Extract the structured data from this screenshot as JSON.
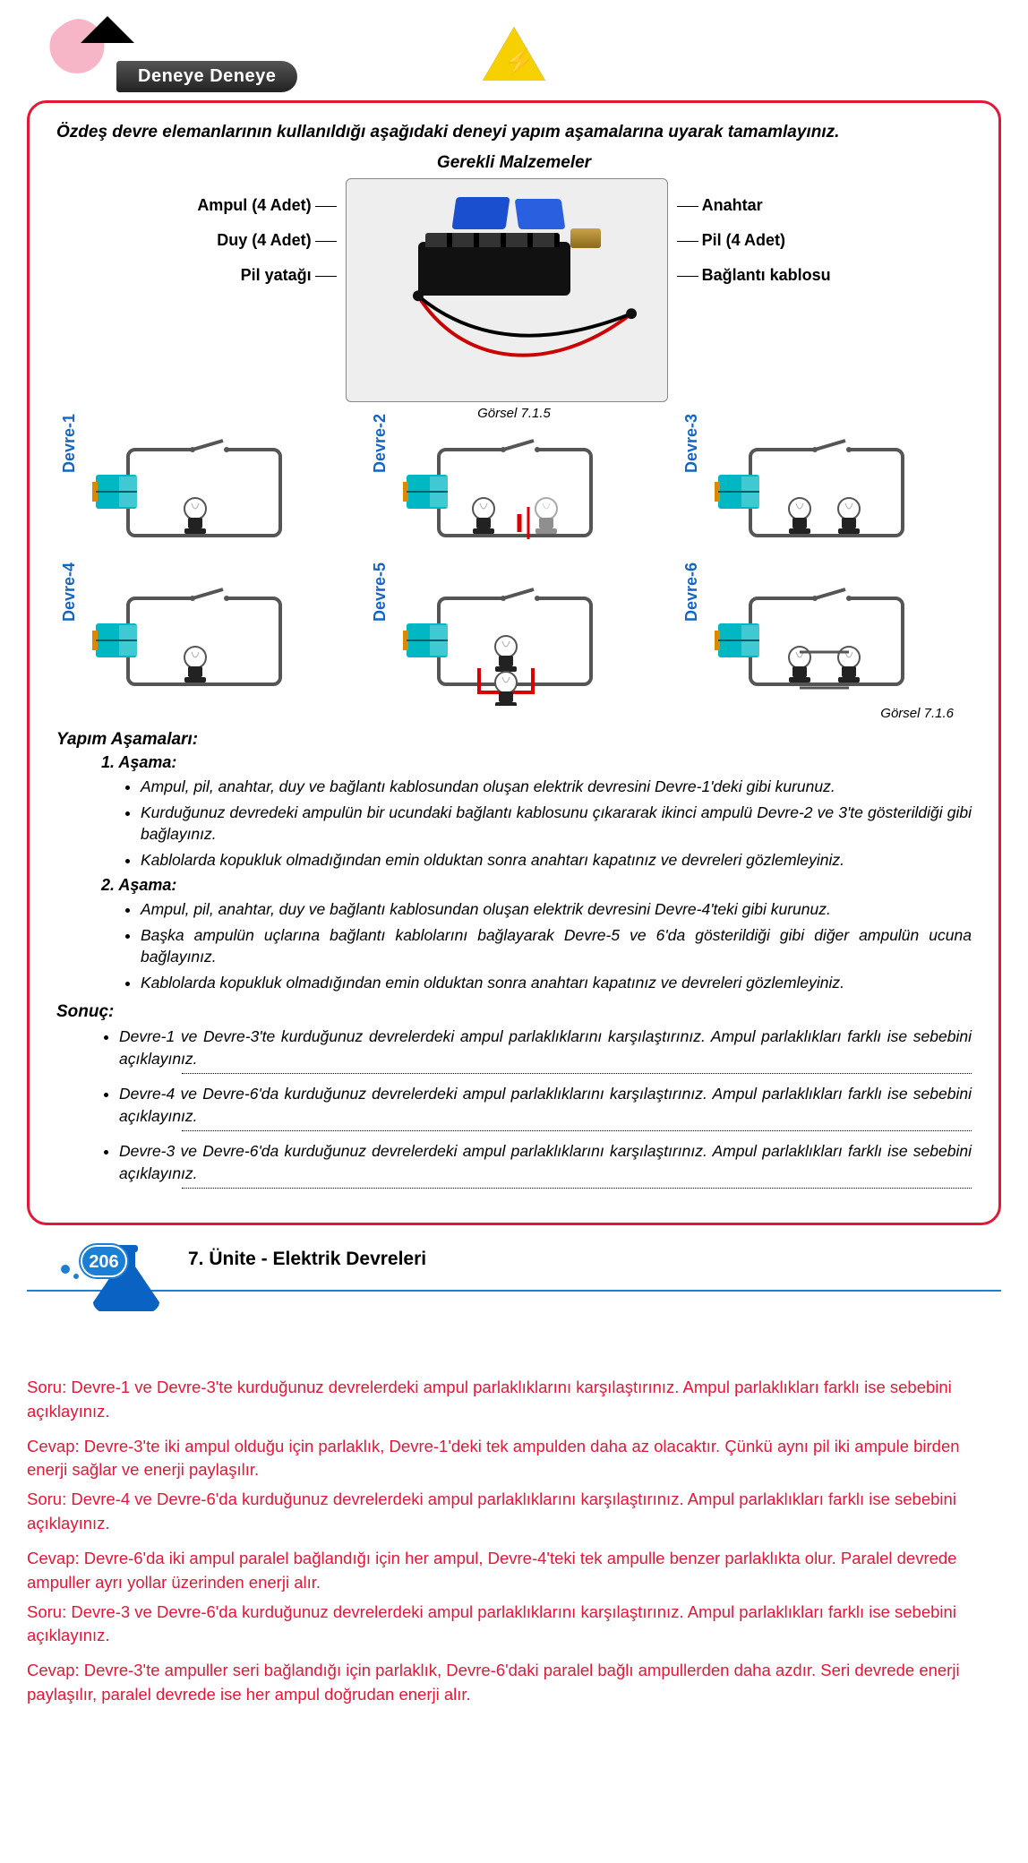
{
  "header": {
    "banner": "Deneye Deneye",
    "intro": "Özdeş devre elemanlarının kullanıldığı aşağıdaki deneyi yapım aşamalarına uyarak tamamlayınız."
  },
  "materials": {
    "title": "Gerekli Malzemeler",
    "left": [
      "Ampul (4 Adet)",
      "Duy (4 Adet)",
      "Pil yatağı"
    ],
    "right": [
      "Anahtar",
      "Pil (4 Adet)",
      "Bağlantı kablosu"
    ],
    "caption": "Görsel 7.1.5"
  },
  "circuits": {
    "labels": [
      "Devre-1",
      "Devre-2",
      "Devre-3",
      "Devre-4",
      "Devre-5",
      "Devre-6"
    ],
    "caption": "Görsel 7.1.6",
    "color_label": "#1565c0",
    "battery_body": "#00b7c4",
    "battery_tip": "#d98a00"
  },
  "steps": {
    "heading": "Yapım Aşamaları:",
    "stage1_h": "1. Aşama:",
    "stage1": [
      "Ampul, pil, anahtar, duy ve bağlantı kablosundan oluşan elektrik devresini Devre-1'deki gibi kurunuz.",
      "Kurduğunuz devredeki ampulün bir ucundaki bağlantı kablosunu çıkararak ikinci ampulü Devre-2 ve 3'te gösterildiği gibi bağlayınız.",
      "Kablolarda kopukluk olmadığından emin olduktan sonra anahtarı kapatınız ve devreleri gözlemleyiniz."
    ],
    "stage2_h": "2. Aşama:",
    "stage2": [
      "Ampul, pil, anahtar, duy ve bağlantı kablosundan oluşan elektrik devresini Devre-4'teki gibi kurunuz.",
      "Başka ampulün uçlarına bağlantı kablolarını bağlayarak Devre-5 ve 6'da gösterildiği gibi diğer ampulün ucuna bağlayınız.",
      "Kablolarda kopukluk olmadığından emin olduktan sonra anahtarı kapatınız ve devreleri gözlemleyiniz."
    ],
    "result_h": "Sonuç:",
    "results": [
      "Devre-1 ve Devre-3'te kurduğunuz devrelerdeki ampul parlaklıklarını karşılaştırınız. Ampul parlaklıkları farklı ise sebebini açıklayınız.",
      "Devre-4 ve Devre-6'da kurduğunuz devrelerdeki ampul parlaklıklarını karşılaştırınız. Ampul parlaklıkları farklı ise sebebini açıklayınız.",
      "Devre-3 ve Devre-6'da kurduğunuz devrelerdeki ampul parlaklıklarını karşılaştırınız. Ampul parlaklıkları farklı ise sebebini açıklayınız."
    ]
  },
  "footer": {
    "page": "206",
    "unit": "7. Ünite - Elektrik Devreleri",
    "flask_color": "#0a63c2"
  },
  "qa": {
    "color": "#e31837",
    "lines": [
      "Soru: Devre-1 ve Devre-3'te kurduğunuz devrelerdeki ampul parlaklıklarını karşılaştırınız. Ampul parlaklıkları farklı ise sebebini açıklayınız.",
      "Cevap: Devre-3'te iki ampul olduğu için parlaklık, Devre-1'deki tek ampulden daha az olacaktır. Çünkü aynı pil iki ampule birden enerji sağlar ve enerji paylaşılır.",
      "Soru: Devre-4 ve Devre-6'da kurduğunuz devrelerdeki ampul parlaklıklarını karşılaştırınız. Ampul parlaklıkları farklı ise sebebini açıklayınız.",
      "Cevap: Devre-6'da iki ampul paralel bağlandığı için her ampul, Devre-4'teki tek ampulle benzer parlaklıkta olur. Paralel devrede ampuller ayrı yollar üzerinden enerji alır.",
      "Soru: Devre-3 ve Devre-6'da kurduğunuz devrelerdeki ampul parlaklıklarını karşılaştırınız. Ampul parlaklıkları farklı ise sebebini açıklayınız.",
      "Cevap: Devre-3'te ampuller seri bağlandığı için parlaklık, Devre-6'daki paralel bağlı ampullerden daha azdır. Seri devrede enerji paylaşılır, paralel devrede ise her ampul doğrudan enerji alır."
    ]
  }
}
